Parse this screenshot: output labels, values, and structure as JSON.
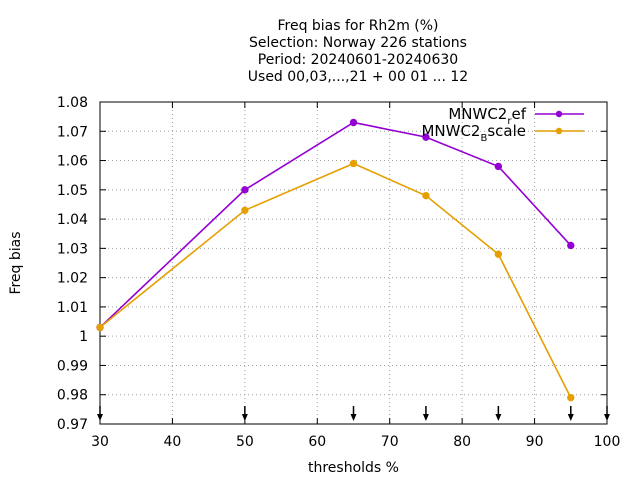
{
  "chart_data": {
    "type": "line",
    "title_lines": [
      "Freq bias  for Rh2m (%)",
      "Selection: Norway    226 stations",
      "Period: 20240601-20240630",
      "Used 00,03,...,21 + 00 01 ... 12"
    ],
    "xlabel": "thresholds %",
    "ylabel": "Freq bias",
    "xlim": [
      30,
      100
    ],
    "ylim": [
      0.97,
      1.08
    ],
    "xticks": [
      30,
      40,
      50,
      60,
      70,
      80,
      90,
      100
    ],
    "yticks": [
      0.97,
      0.98,
      0.99,
      1,
      1.01,
      1.02,
      1.03,
      1.04,
      1.05,
      1.06,
      1.07,
      1.08
    ],
    "ytick_labels": [
      "0.97",
      "0.98",
      "0.99",
      "1",
      "1.01",
      "1.02",
      "1.03",
      "1.04",
      "1.05",
      "1.06",
      "1.07",
      "1.08"
    ],
    "grid": true,
    "legend_position": "top-right",
    "threshold_markers_x": [
      30,
      50,
      65,
      75,
      85,
      95,
      100
    ],
    "series": [
      {
        "name": "MNWC2_ref",
        "legend_base": "MNWC2",
        "legend_sub": "r",
        "legend_rest": "ef",
        "color": "#9400d3",
        "x": [
          30,
          50,
          65,
          75,
          85,
          95
        ],
        "y": [
          1.003,
          1.05,
          1.073,
          1.068,
          1.058,
          1.031
        ]
      },
      {
        "name": "MNWC2_Bscale",
        "legend_base": "MNWC2",
        "legend_sub": "B",
        "legend_rest": "scale",
        "color": "#e69f00",
        "x": [
          30,
          50,
          65,
          75,
          85,
          95
        ],
        "y": [
          1.003,
          1.043,
          1.059,
          1.048,
          1.028,
          0.979
        ]
      }
    ]
  }
}
